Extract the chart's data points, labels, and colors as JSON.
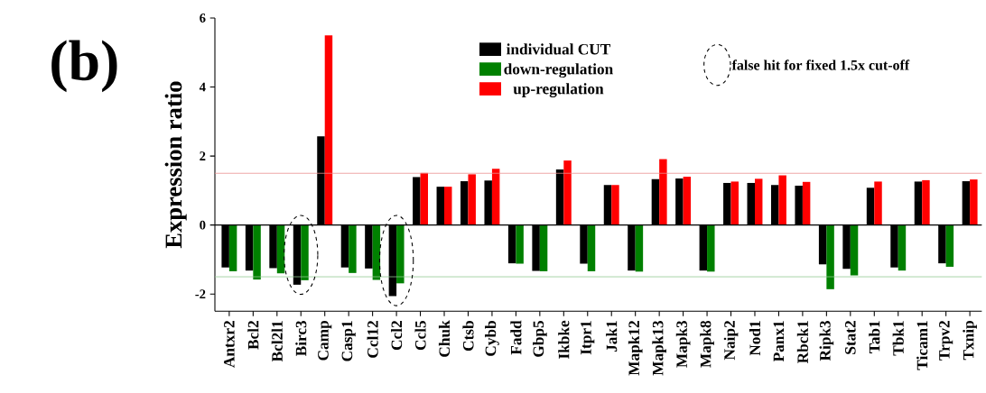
{
  "chart_data": {
    "type": "bar",
    "ylabel": "Expression ratio",
    "legend": "top",
    "categories": [
      "Antxr2",
      "Bcl2",
      "Bcl2l1",
      "Birc3",
      "Camp",
      "Casp1",
      "Ccl12",
      "Ccl2",
      "Ccl5",
      "Chuk",
      "Ctsb",
      "Cybb",
      "Fadd",
      "Gbp5",
      "Ikbke",
      "Itpr1",
      "Jak1",
      "Mapk12",
      "Mapk13",
      "Mapk3",
      "Mapk8",
      "Naip2",
      "Nod1",
      "Panx1",
      "Rbck1",
      "Ripk3",
      "Stat2",
      "Tab1",
      "Tbk1",
      "Ticam1",
      "Trpv2",
      "Txnip"
    ],
    "series": [
      {
        "name": "individual CUT",
        "color": "#000000",
        "values": [
          -1.23,
          -1.32,
          -1.25,
          -1.73,
          2.57,
          -1.23,
          -1.26,
          -2.06,
          1.39,
          1.11,
          1.27,
          1.29,
          -1.11,
          -1.33,
          1.61,
          -1.12,
          1.16,
          -1.32,
          1.33,
          1.35,
          -1.32,
          1.22,
          1.22,
          1.16,
          1.14,
          -1.14,
          -1.27,
          1.08,
          -1.23,
          1.26,
          -1.11,
          1.27
        ]
      },
      {
        "name": "down-regulation",
        "color": "#008000",
        "values": [
          -1.34,
          -1.58,
          -1.4,
          -1.6,
          null,
          -1.39,
          -1.59,
          -1.69,
          null,
          null,
          null,
          null,
          -1.12,
          -1.34,
          null,
          -1.34,
          null,
          -1.35,
          null,
          null,
          -1.35,
          null,
          null,
          null,
          null,
          -1.86,
          -1.46,
          null,
          -1.32,
          null,
          -1.21,
          null
        ]
      },
      {
        "name": "up-regulation",
        "color": "#ff0000",
        "values": [
          null,
          null,
          null,
          null,
          5.5,
          null,
          null,
          null,
          1.51,
          1.11,
          1.47,
          1.63,
          null,
          null,
          1.87,
          null,
          1.16,
          null,
          1.91,
          1.4,
          null,
          1.26,
          1.34,
          1.44,
          1.25,
          null,
          null,
          1.26,
          null,
          1.3,
          null,
          1.32
        ]
      }
    ],
    "ylim": [
      -2.5,
      6
    ],
    "yticks": [
      -2,
      0,
      2,
      4,
      6
    ],
    "ref_lines": [
      {
        "axis": "y",
        "value": 1.5,
        "color": "#e89090"
      },
      {
        "axis": "y",
        "value": -1.5,
        "color": "#90c890"
      }
    ],
    "annotations": [
      "false hit for fixed 1.5x cut-off",
      "(b)"
    ]
  }
}
